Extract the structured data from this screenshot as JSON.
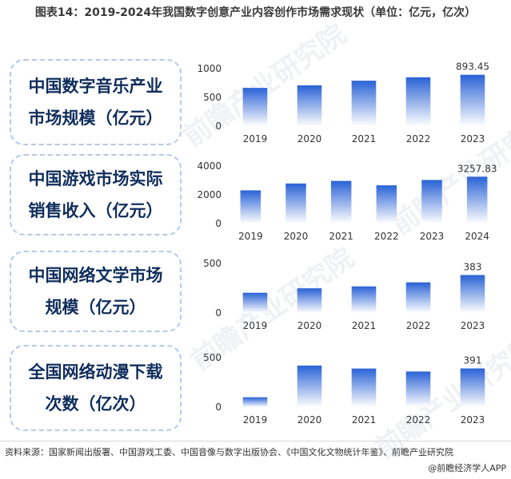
{
  "title": "图表14：2019-2024年我国数字创意产业内容创作市场需求现状（单位：亿元，亿次）",
  "footer": {
    "source": "资料来源：国家新闻出版署、中国游戏工委、中国音像与数字出版协会、《中国文化文物统计年鉴》、前瞻产业研究院",
    "brand": "@前瞻经济学人APP"
  },
  "watermark": "前瞻产业研究院",
  "colors": {
    "bar_top": "#2a63d6",
    "bar_bottom": "#ffffff",
    "label_text": "#0f2d5c",
    "box_border": "#b7c9e6"
  },
  "panels": [
    {
      "label_lines": [
        "中国数字音乐产业",
        "市场规模（亿元）"
      ]
    },
    {
      "label_lines": [
        "中国游戏市场实际",
        "销售收入（亿元）"
      ]
    },
    {
      "label_lines": [
        "中国网络文学市场",
        "规模（亿元）"
      ]
    },
    {
      "label_lines": [
        "全国网络动漫下载",
        "次数（亿次）"
      ]
    }
  ],
  "chart_data": [
    {
      "type": "bar",
      "categories": [
        "2019",
        "2020",
        "2021",
        "2022",
        "2023"
      ],
      "values": [
        665,
        710,
        790,
        850,
        893.45
      ],
      "data_labels": [
        "",
        "",
        "",
        "",
        "893.45"
      ],
      "yticks": [
        "0",
        "500",
        "1000"
      ],
      "ylim": [
        0,
        1000
      ]
    },
    {
      "type": "bar",
      "categories": [
        "2019",
        "2020",
        "2021",
        "2022",
        "2023",
        "2024"
      ],
      "values": [
        2308.8,
        2786.87,
        2965.13,
        2658.84,
        3029.64,
        3257.83
      ],
      "data_labels": [
        "",
        "",
        "",
        "",
        "",
        "3257.83"
      ],
      "yticks": [
        "0",
        "2000",
        "4000"
      ],
      "ylim": [
        0,
        4000
      ]
    },
    {
      "type": "bar",
      "categories": [
        "2019",
        "2020",
        "2021",
        "2022",
        "2023"
      ],
      "values": [
        204,
        249,
        268,
        309,
        383
      ],
      "data_labels": [
        "",
        "",
        "",
        "",
        "383"
      ],
      "yticks": [
        "0",
        "500"
      ],
      "ylim": [
        0,
        500
      ]
    },
    {
      "type": "bar",
      "categories": [
        "2019",
        "2020",
        "2021",
        "2022",
        "2023"
      ],
      "values": [
        100,
        420,
        390,
        360,
        391
      ],
      "data_labels": [
        "",
        "",
        "",
        "",
        "391"
      ],
      "yticks": [
        "0",
        "500"
      ],
      "ylim": [
        0,
        500
      ]
    }
  ]
}
